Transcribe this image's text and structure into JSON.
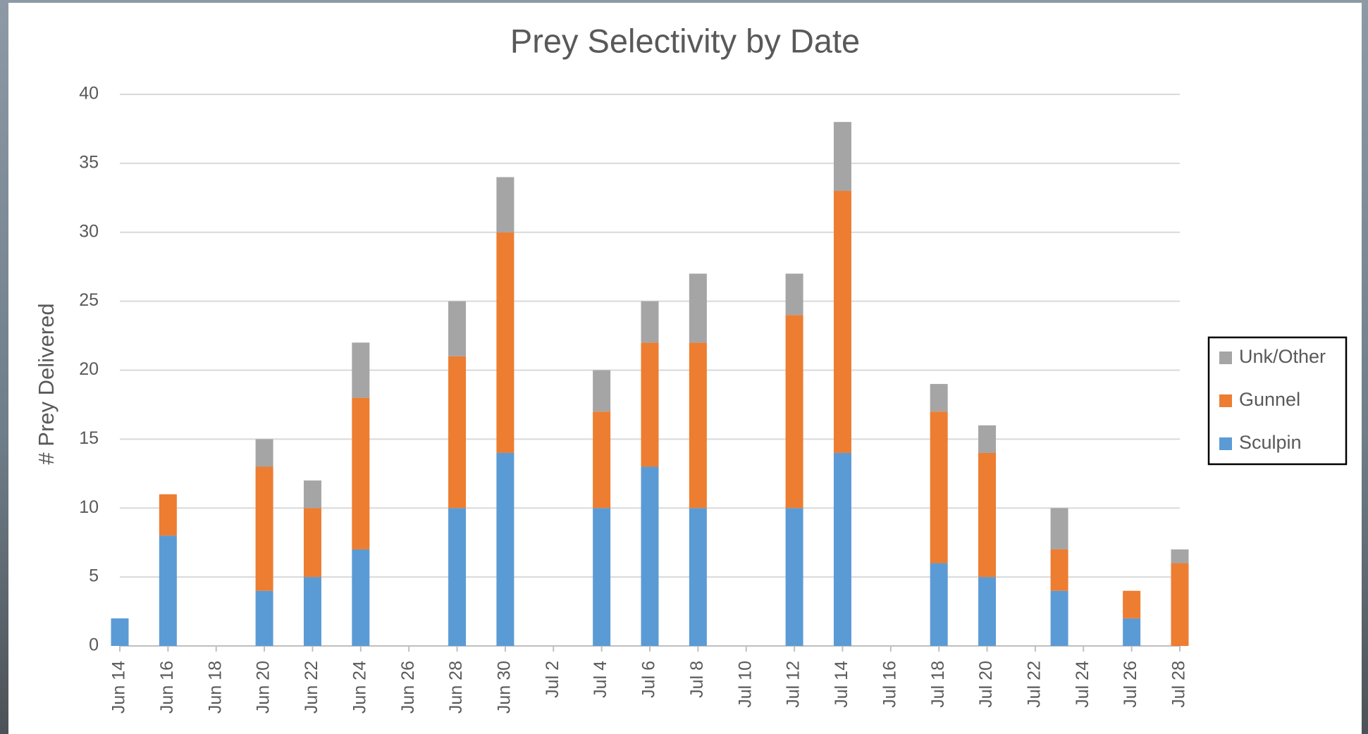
{
  "chart_data": {
    "type": "stacked_bar",
    "title": "Prey Selectivity by Date",
    "y_label": "# Prey Delivered",
    "categories": [
      "Jun 14",
      null,
      "Jun 16",
      null,
      "Jun 18",
      null,
      "Jun 20",
      null,
      "Jun 22",
      null,
      "Jun 24",
      null,
      "Jun 26",
      null,
      "Jun 28",
      null,
      "Jun 30",
      null,
      "Jul 2",
      null,
      "Jul 4",
      null,
      "Jul 6",
      null,
      "Jul 8",
      null,
      "Jul 10",
      null,
      "Jul 12",
      null,
      "Jul 14",
      null,
      "Jul 16",
      null,
      "Jul 18",
      null,
      "Jul 20",
      null,
      "Jul 22",
      null,
      "Jul 24",
      null,
      "Jul 26",
      null,
      "Jul 28"
    ],
    "series": [
      {
        "name": "Sculpin",
        "color": "#5b9bd5",
        "values": [
          2,
          null,
          8,
          null,
          null,
          null,
          4,
          null,
          5,
          null,
          7,
          null,
          null,
          null,
          10,
          null,
          14,
          null,
          null,
          null,
          10,
          null,
          13,
          null,
          10,
          null,
          null,
          null,
          10,
          null,
          14,
          null,
          null,
          null,
          6,
          null,
          5,
          null,
          null,
          4,
          null,
          null,
          2,
          null,
          0
        ]
      },
      {
        "name": "Gunnel",
        "color": "#ed7d31",
        "values": [
          0,
          null,
          3,
          null,
          null,
          null,
          9,
          null,
          5,
          null,
          11,
          null,
          null,
          null,
          11,
          null,
          16,
          null,
          null,
          null,
          7,
          null,
          9,
          null,
          12,
          null,
          null,
          null,
          14,
          null,
          19,
          null,
          null,
          null,
          11,
          null,
          9,
          null,
          null,
          3,
          null,
          null,
          2,
          null,
          6
        ]
      },
      {
        "name": "Unk/Other",
        "color": "#a5a5a5",
        "values": [
          0,
          null,
          0,
          null,
          null,
          null,
          2,
          null,
          2,
          null,
          4,
          null,
          null,
          null,
          4,
          null,
          4,
          null,
          null,
          null,
          3,
          null,
          3,
          null,
          5,
          null,
          null,
          null,
          3,
          null,
          5,
          null,
          null,
          null,
          2,
          null,
          2,
          null,
          null,
          3,
          null,
          null,
          0,
          null,
          1
        ]
      }
    ],
    "ylim": [
      0,
      40
    ],
    "yticks": [
      0,
      5,
      10,
      15,
      20,
      25,
      30,
      35,
      40
    ],
    "grid": true,
    "legend": "right"
  }
}
